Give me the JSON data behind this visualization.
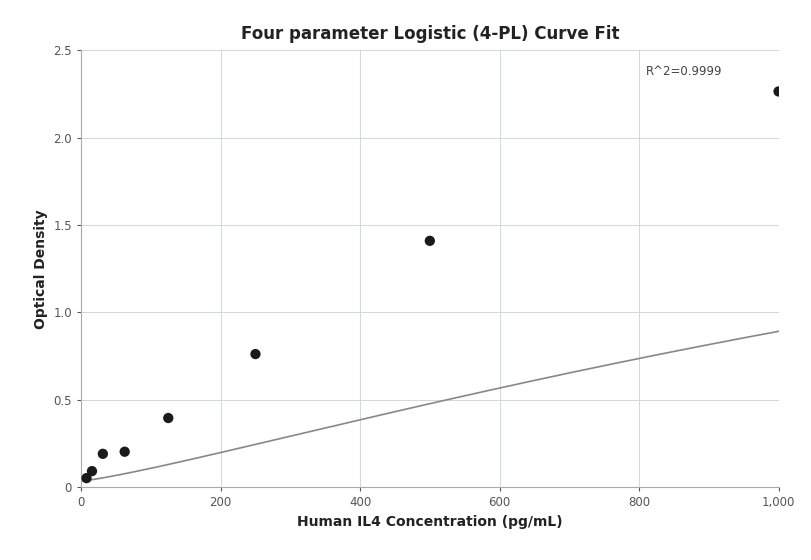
{
  "title": "Four parameter Logistic (4-PL) Curve Fit",
  "xlabel": "Human IL4 Concentration (pg/mL)",
  "ylabel": "Optical Density",
  "data_x": [
    7.8,
    15.6,
    31.2,
    62.5,
    125,
    250,
    500,
    1000
  ],
  "data_y": [
    0.052,
    0.092,
    0.191,
    0.203,
    0.396,
    0.762,
    1.41,
    2.265
  ],
  "r_squared": "R^2=0.9999",
  "xlim": [
    0,
    1000
  ],
  "ylim": [
    0,
    2.5
  ],
  "dot_color": "#1a1a1a",
  "dot_size": 55,
  "curve_color": "#888888",
  "background_color": "#ffffff",
  "grid_color": "#d0d8e0",
  "title_fontsize": 12,
  "label_fontsize": 10,
  "tick_fontsize": 8.5,
  "annotation_fontsize": 8.5,
  "4pl_A": 0.035,
  "4pl_B": 1.2,
  "4pl_C": 2200,
  "4pl_D": 3.1
}
